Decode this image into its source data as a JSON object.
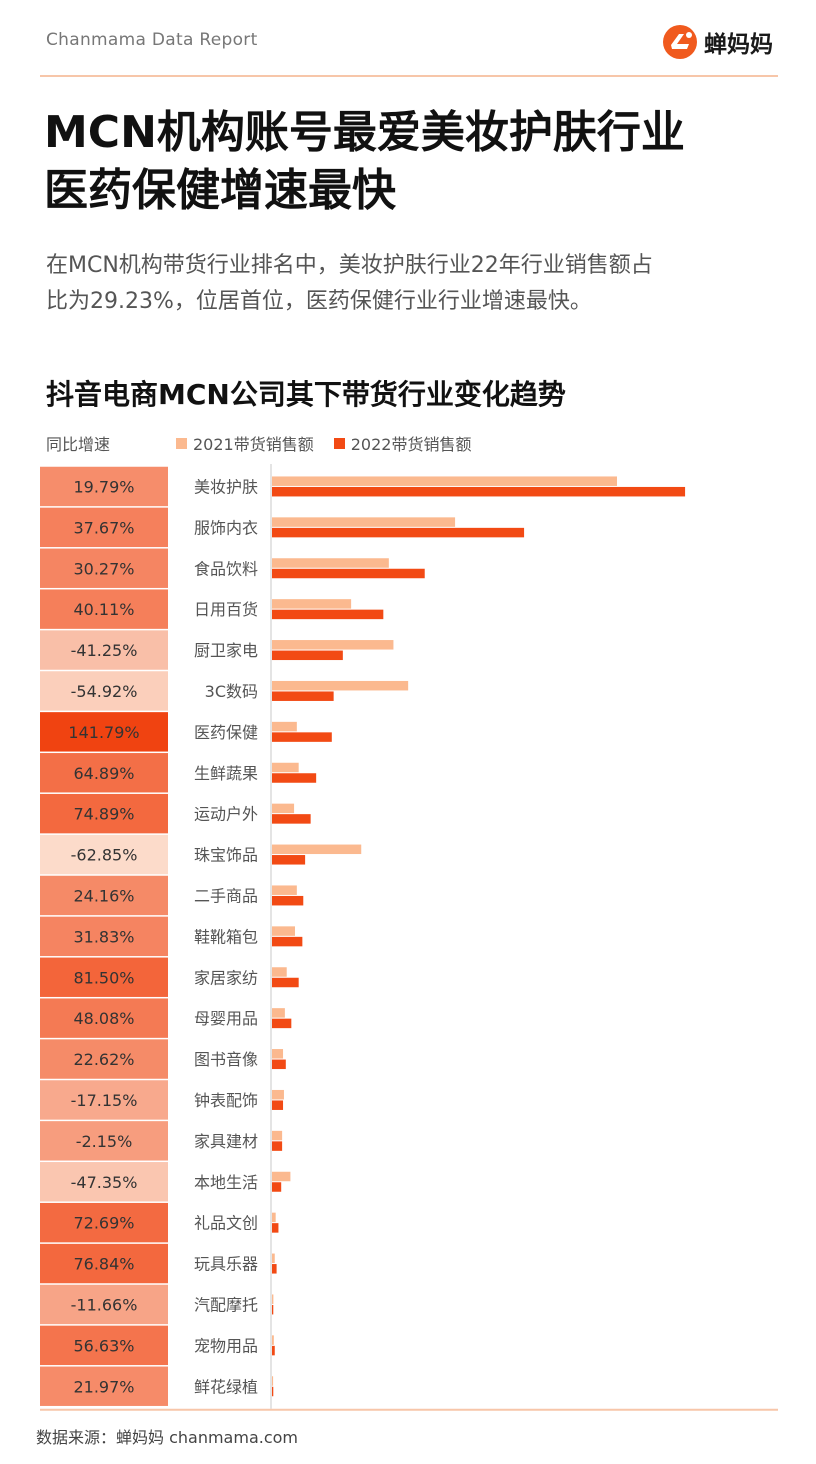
{
  "header": {
    "report": "Chanmama Data Report",
    "brand": "蝉妈妈"
  },
  "title_lines": [
    "MCN机构账号最爱美妆护肤行业",
    "医药保健增速最快"
  ],
  "description_lines": [
    "在MCN机构带货行业排名中，美妆护肤行业22年行业销售额占",
    "比为29.23%，位居首位，医药保健行业行业增速最快。"
  ],
  "source": "数据来源：蝉妈妈 chanmama.com",
  "colors": {
    "series2021": "#fbb98f",
    "series2022": "#f24a14",
    "accent": "#f05a1e"
  },
  "chart_data": {
    "type": "bar",
    "orientation": "horizontal",
    "title": "抖音电商MCN公司其下带货行业变化趋势",
    "yoy_label": "同比增速",
    "categories": [
      "美妆护肤",
      "服饰内衣",
      "食品饮料",
      "日用百货",
      "厨卫家电",
      "3C数码",
      "医药保健",
      "生鲜蔬果",
      "运动户外",
      "珠宝饰品",
      "二手商品",
      "鞋靴箱包",
      "家居家纺",
      "母婴用品",
      "图书音像",
      "钟表配饰",
      "家具建材",
      "本地生活",
      "礼品文创",
      "玩具乐器",
      "汽配摩托",
      "宠物用品",
      "鲜花绿植"
    ],
    "yoy": [
      "19.79%",
      "37.67%",
      "30.27%",
      "40.11%",
      "-41.25%",
      "-54.92%",
      "141.79%",
      "64.89%",
      "74.89%",
      "-62.85%",
      "24.16%",
      "31.83%",
      "81.50%",
      "48.08%",
      "22.62%",
      "-17.15%",
      "-2.15%",
      "-47.35%",
      "72.69%",
      "76.84%",
      "-11.66%",
      "56.63%",
      "21.97%"
    ],
    "series": [
      {
        "name": "2021带货销售额",
        "values": [
          375,
          199,
          127,
          86,
          132,
          148,
          27,
          29,
          24,
          97,
          27,
          25,
          16,
          14,
          12,
          13,
          11,
          20,
          4,
          3,
          1.5,
          2,
          1.2
        ]
      },
      {
        "name": "2022带货销售额",
        "values": [
          449,
          274,
          166,
          121,
          77,
          67,
          65,
          48,
          42,
          36,
          34,
          33,
          29,
          21,
          15,
          12,
          11,
          10,
          7,
          5,
          1.4,
          3,
          1.4
        ]
      }
    ],
    "xlim": [
      0,
      500
    ],
    "legend": "top"
  }
}
